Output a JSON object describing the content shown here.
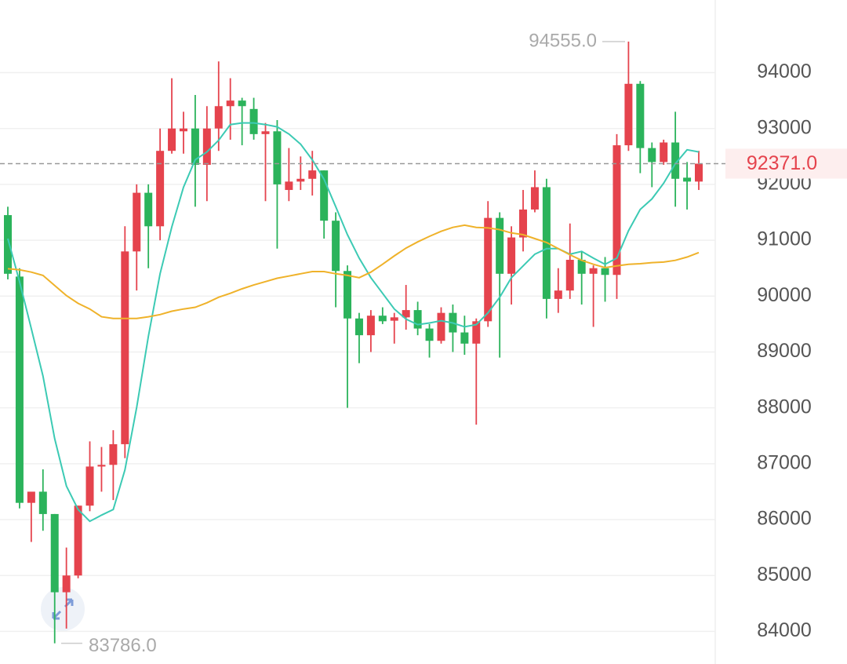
{
  "chart_data": {
    "type": "candlestick",
    "open": [
      91450,
      90350,
      86300,
      86500,
      86100,
      84700,
      85000,
      86250,
      86950,
      86980,
      87350,
      90800,
      91850,
      91250,
      92600,
      92950,
      93000,
      92350,
      93000,
      93400,
      93500,
      93350,
      92900,
      92950,
      91900,
      92050,
      92100,
      92250,
      91350,
      90450,
      89600,
      89300,
      89650,
      89560,
      89620,
      89750,
      89420,
      89200,
      89700,
      89350,
      89150,
      89550,
      91400,
      90400,
      91050,
      91550,
      91950,
      89950,
      90100,
      90650,
      90400,
      90500,
      90380,
      92700,
      93800,
      92650,
      92400,
      92750,
      92120,
      92050
    ],
    "high": [
      91600,
      90500,
      86500,
      86900,
      86100,
      85500,
      86250,
      87400,
      87300,
      87600,
      91250,
      92000,
      92000,
      93000,
      93900,
      93300,
      93600,
      93400,
      94200,
      93900,
      93550,
      93550,
      93100,
      93150,
      92650,
      92500,
      92600,
      92250,
      91500,
      90550,
      89700,
      89750,
      89800,
      89700,
      90200,
      89900,
      89500,
      89800,
      89850,
      89650,
      89600,
      91700,
      91500,
      91250,
      91900,
      92250,
      92100,
      90500,
      91300,
      90800,
      90550,
      90700,
      92900,
      94555,
      93850,
      92750,
      92800,
      93300,
      92400,
      92600
    ],
    "low": [
      90300,
      86200,
      85600,
      85800,
      83786,
      84050,
      84950,
      86150,
      86500,
      86350,
      87100,
      90100,
      90500,
      91000,
      92550,
      92550,
      91600,
      91700,
      92600,
      92800,
      92700,
      92800,
      91700,
      90850,
      91700,
      91900,
      91800,
      91030,
      89800,
      88000,
      88800,
      89000,
      89500,
      89150,
      89400,
      89300,
      88900,
      89150,
      89000,
      88950,
      87700,
      89450,
      88900,
      89850,
      90800,
      91500,
      89600,
      89700,
      89950,
      89850,
      89450,
      89900,
      89950,
      92600,
      92200,
      91950,
      92350,
      91600,
      91550,
      91900
    ],
    "close": [
      90400,
      86300,
      86500,
      86100,
      84700,
      85000,
      86250,
      86950,
      86980,
      87350,
      90800,
      91850,
      91250,
      92600,
      93000,
      93000,
      92350,
      93000,
      93400,
      93500,
      93400,
      92900,
      92950,
      92000,
      92050,
      92100,
      92250,
      91350,
      90450,
      89600,
      89300,
      89650,
      89550,
      89620,
      89750,
      89420,
      89200,
      89700,
      89350,
      89150,
      89550,
      91400,
      90400,
      91050,
      91550,
      91950,
      89950,
      90100,
      90650,
      90400,
      90500,
      90380,
      92700,
      93800,
      92650,
      92400,
      92750,
      92100,
      92050,
      92371
    ],
    "up_color": "#e5434d",
    "down_color": "#2bb35b",
    "series": [
      {
        "color": "#3ccab4",
        "values": [
          91030,
          90260,
          89420,
          88570,
          87450,
          86600,
          86180,
          85970,
          86080,
          86180,
          86890,
          88010,
          89280,
          90400,
          91240,
          91950,
          92440,
          92580,
          92790,
          93070,
          93100,
          93100,
          93070,
          93030,
          92900,
          92720,
          92440,
          92090,
          91600,
          91100,
          90680,
          90330,
          90050,
          89770,
          89590,
          89490,
          89520,
          89560,
          89520,
          89450,
          89490,
          89700,
          89980,
          90330,
          90540,
          90750,
          90850,
          90850,
          90750,
          90800,
          90680,
          90570,
          90680,
          91170,
          91550,
          91740,
          92020,
          92370,
          92620,
          92580
        ]
      },
      {
        "color": "#efb22a",
        "values": [
          90490,
          90470,
          90430,
          90370,
          90190,
          90010,
          89870,
          89770,
          89630,
          89600,
          89600,
          89600,
          89630,
          89670,
          89730,
          89770,
          89800,
          89880,
          89980,
          90050,
          90130,
          90200,
          90260,
          90320,
          90360,
          90400,
          90440,
          90440,
          90400,
          90370,
          90330,
          90430,
          90570,
          90720,
          90860,
          90970,
          91070,
          91160,
          91230,
          91270,
          91230,
          91220,
          91190,
          91130,
          91100,
          91030,
          90960,
          90850,
          90740,
          90640,
          90570,
          90510,
          90540,
          90570,
          90580,
          90600,
          90610,
          90640,
          90700,
          90780
        ]
      }
    ],
    "ylim": [
      83500,
      95300
    ],
    "yticks": [
      84000,
      85000,
      86000,
      87000,
      88000,
      89000,
      90000,
      91000,
      92000,
      93000,
      94000
    ],
    "grid": true,
    "annotations": {
      "high": {
        "value": 94555,
        "label": "94555.0"
      },
      "low": {
        "value": 83786,
        "label": "83786.0"
      },
      "last": {
        "value": 92371,
        "label": "92371.0"
      }
    }
  }
}
